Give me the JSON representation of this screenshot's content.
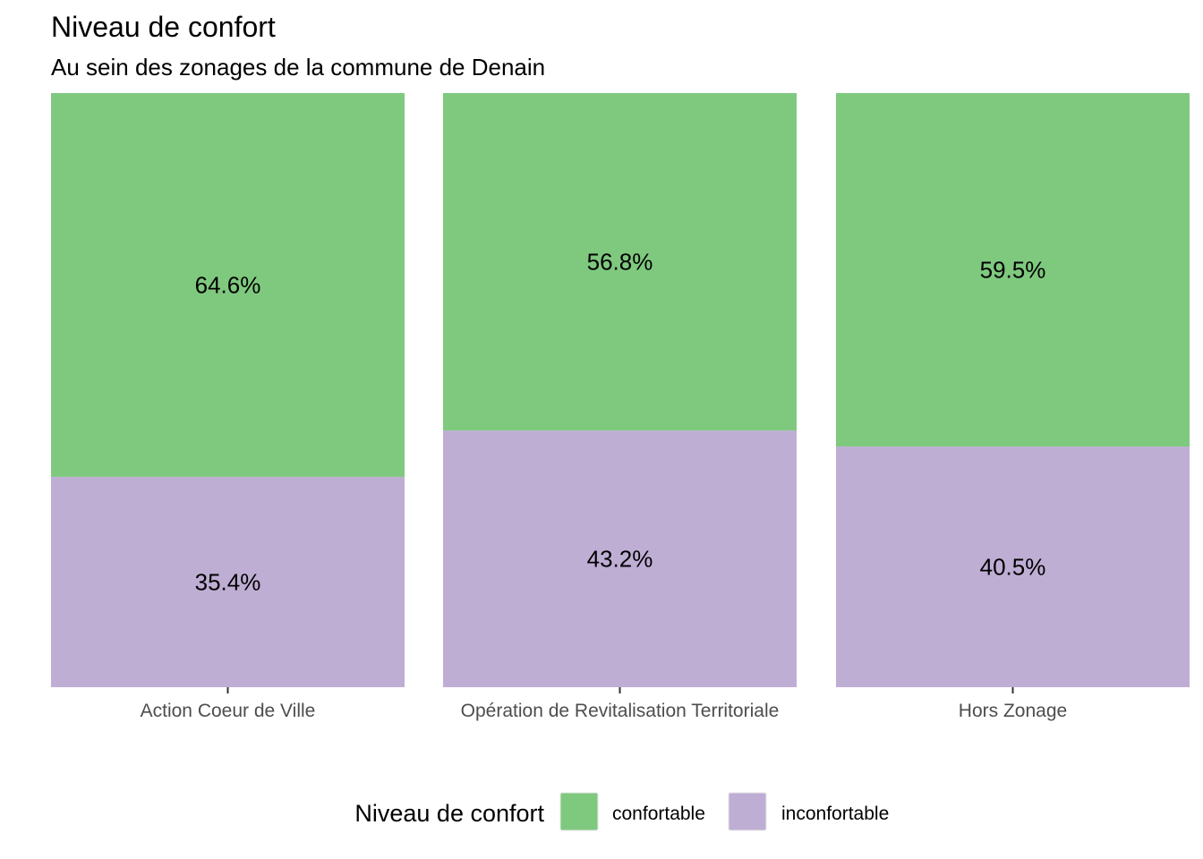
{
  "chart_data": {
    "type": "bar",
    "stacked": true,
    "title": "Niveau de confort",
    "subtitle": "Au sein des zonages de la commune de Denain",
    "xlabel": "",
    "ylabel": "",
    "ylim": [
      0,
      100
    ],
    "grid": false,
    "categories": [
      "Action Coeur de Ville",
      "Opération de Revitalisation Territoriale",
      "Hors Zonage"
    ],
    "series": [
      {
        "name": "confortable",
        "color": "#7fc97f",
        "values": [
          64.6,
          56.8,
          59.5
        ],
        "labels": [
          "64.6%",
          "56.8%",
          "59.5%"
        ]
      },
      {
        "name": "inconfortable",
        "color": "#beaed4",
        "values": [
          35.4,
          43.2,
          40.5
        ],
        "labels": [
          "35.4%",
          "43.2%",
          "40.5%"
        ]
      }
    ],
    "legend": {
      "title": "Niveau de confort",
      "position": "bottom",
      "entries": [
        "confortable",
        "inconfortable"
      ]
    }
  }
}
